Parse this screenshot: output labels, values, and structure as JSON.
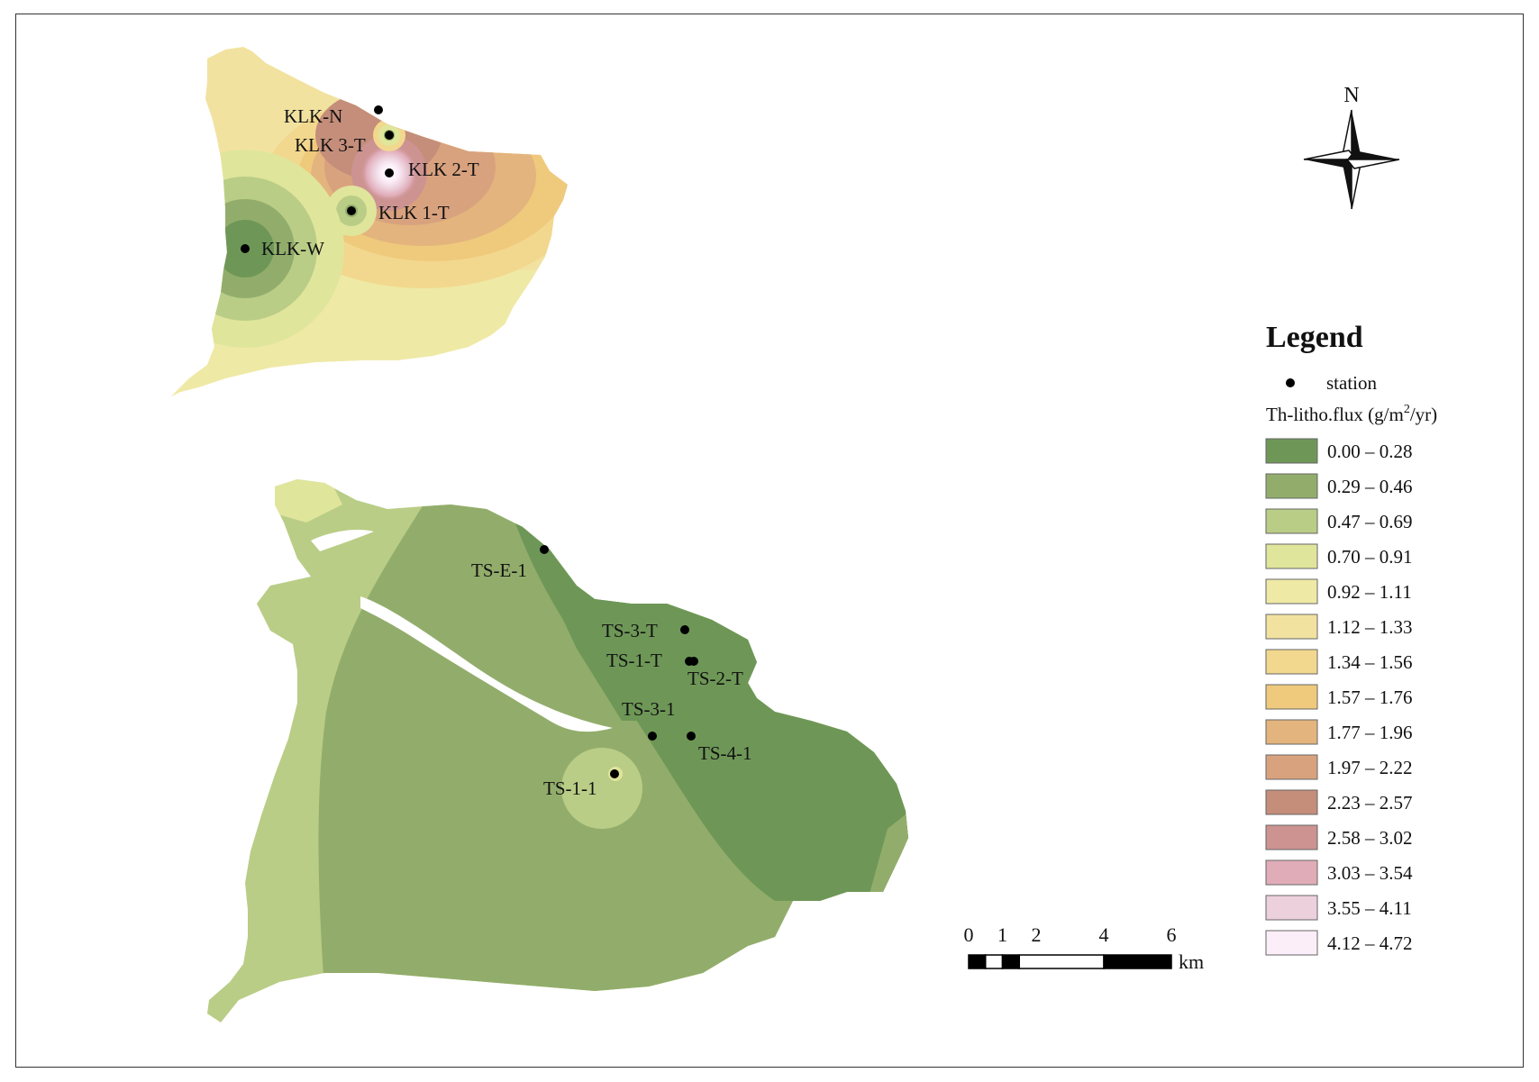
{
  "north_label": "N",
  "legend": {
    "title": "Legend",
    "station_label": "station",
    "variable_label_prefix": "Th-litho.flux (g/m",
    "variable_label_sup": "2",
    "variable_label_suffix": "/yr)",
    "classes": [
      {
        "label": "0.00 – 0.28",
        "color": "#6e9757"
      },
      {
        "label": "0.29 – 0.46",
        "color": "#92ad6b"
      },
      {
        "label": "0.47 – 0.69",
        "color": "#b9cd86"
      },
      {
        "label": "0.70 – 0.91",
        "color": "#e0e59c"
      },
      {
        "label": "0.92 – 1.11",
        "color": "#efe9a6"
      },
      {
        "label": "1.12 – 1.33",
        "color": "#f2e2a0"
      },
      {
        "label": "1.34 – 1.56",
        "color": "#f2d88e"
      },
      {
        "label": "1.57 – 1.76",
        "color": "#efc97c"
      },
      {
        "label": "1.77 – 1.96",
        "color": "#e3b47e"
      },
      {
        "label": "1.97 – 2.22",
        "color": "#d9a27e"
      },
      {
        "label": "2.23 – 2.57",
        "color": "#c48e7a"
      },
      {
        "label": "2.58 – 3.02",
        "color": "#cc9391"
      },
      {
        "label": "3.03 – 3.54",
        "color": "#e0acb8"
      },
      {
        "label": "3.55 – 4.11",
        "color": "#ecd0dc"
      },
      {
        "label": "4.12 – 4.72",
        "color": "#fbeef8"
      }
    ]
  },
  "scale_bar": {
    "ticks": [
      "0",
      "1",
      "2",
      "4",
      "6"
    ],
    "unit": "km"
  },
  "stations": [
    {
      "name": "KLK-N"
    },
    {
      "name": "KLK 3-T"
    },
    {
      "name": "KLK 2-T"
    },
    {
      "name": "KLK 1-T"
    },
    {
      "name": "KLK-W"
    },
    {
      "name": "TS-E-1"
    },
    {
      "name": "TS-3-T"
    },
    {
      "name": "TS-1-T"
    },
    {
      "name": "TS-2-T"
    },
    {
      "name": "TS-3-1"
    },
    {
      "name": "TS-4-1"
    },
    {
      "name": "TS-1-1"
    }
  ]
}
